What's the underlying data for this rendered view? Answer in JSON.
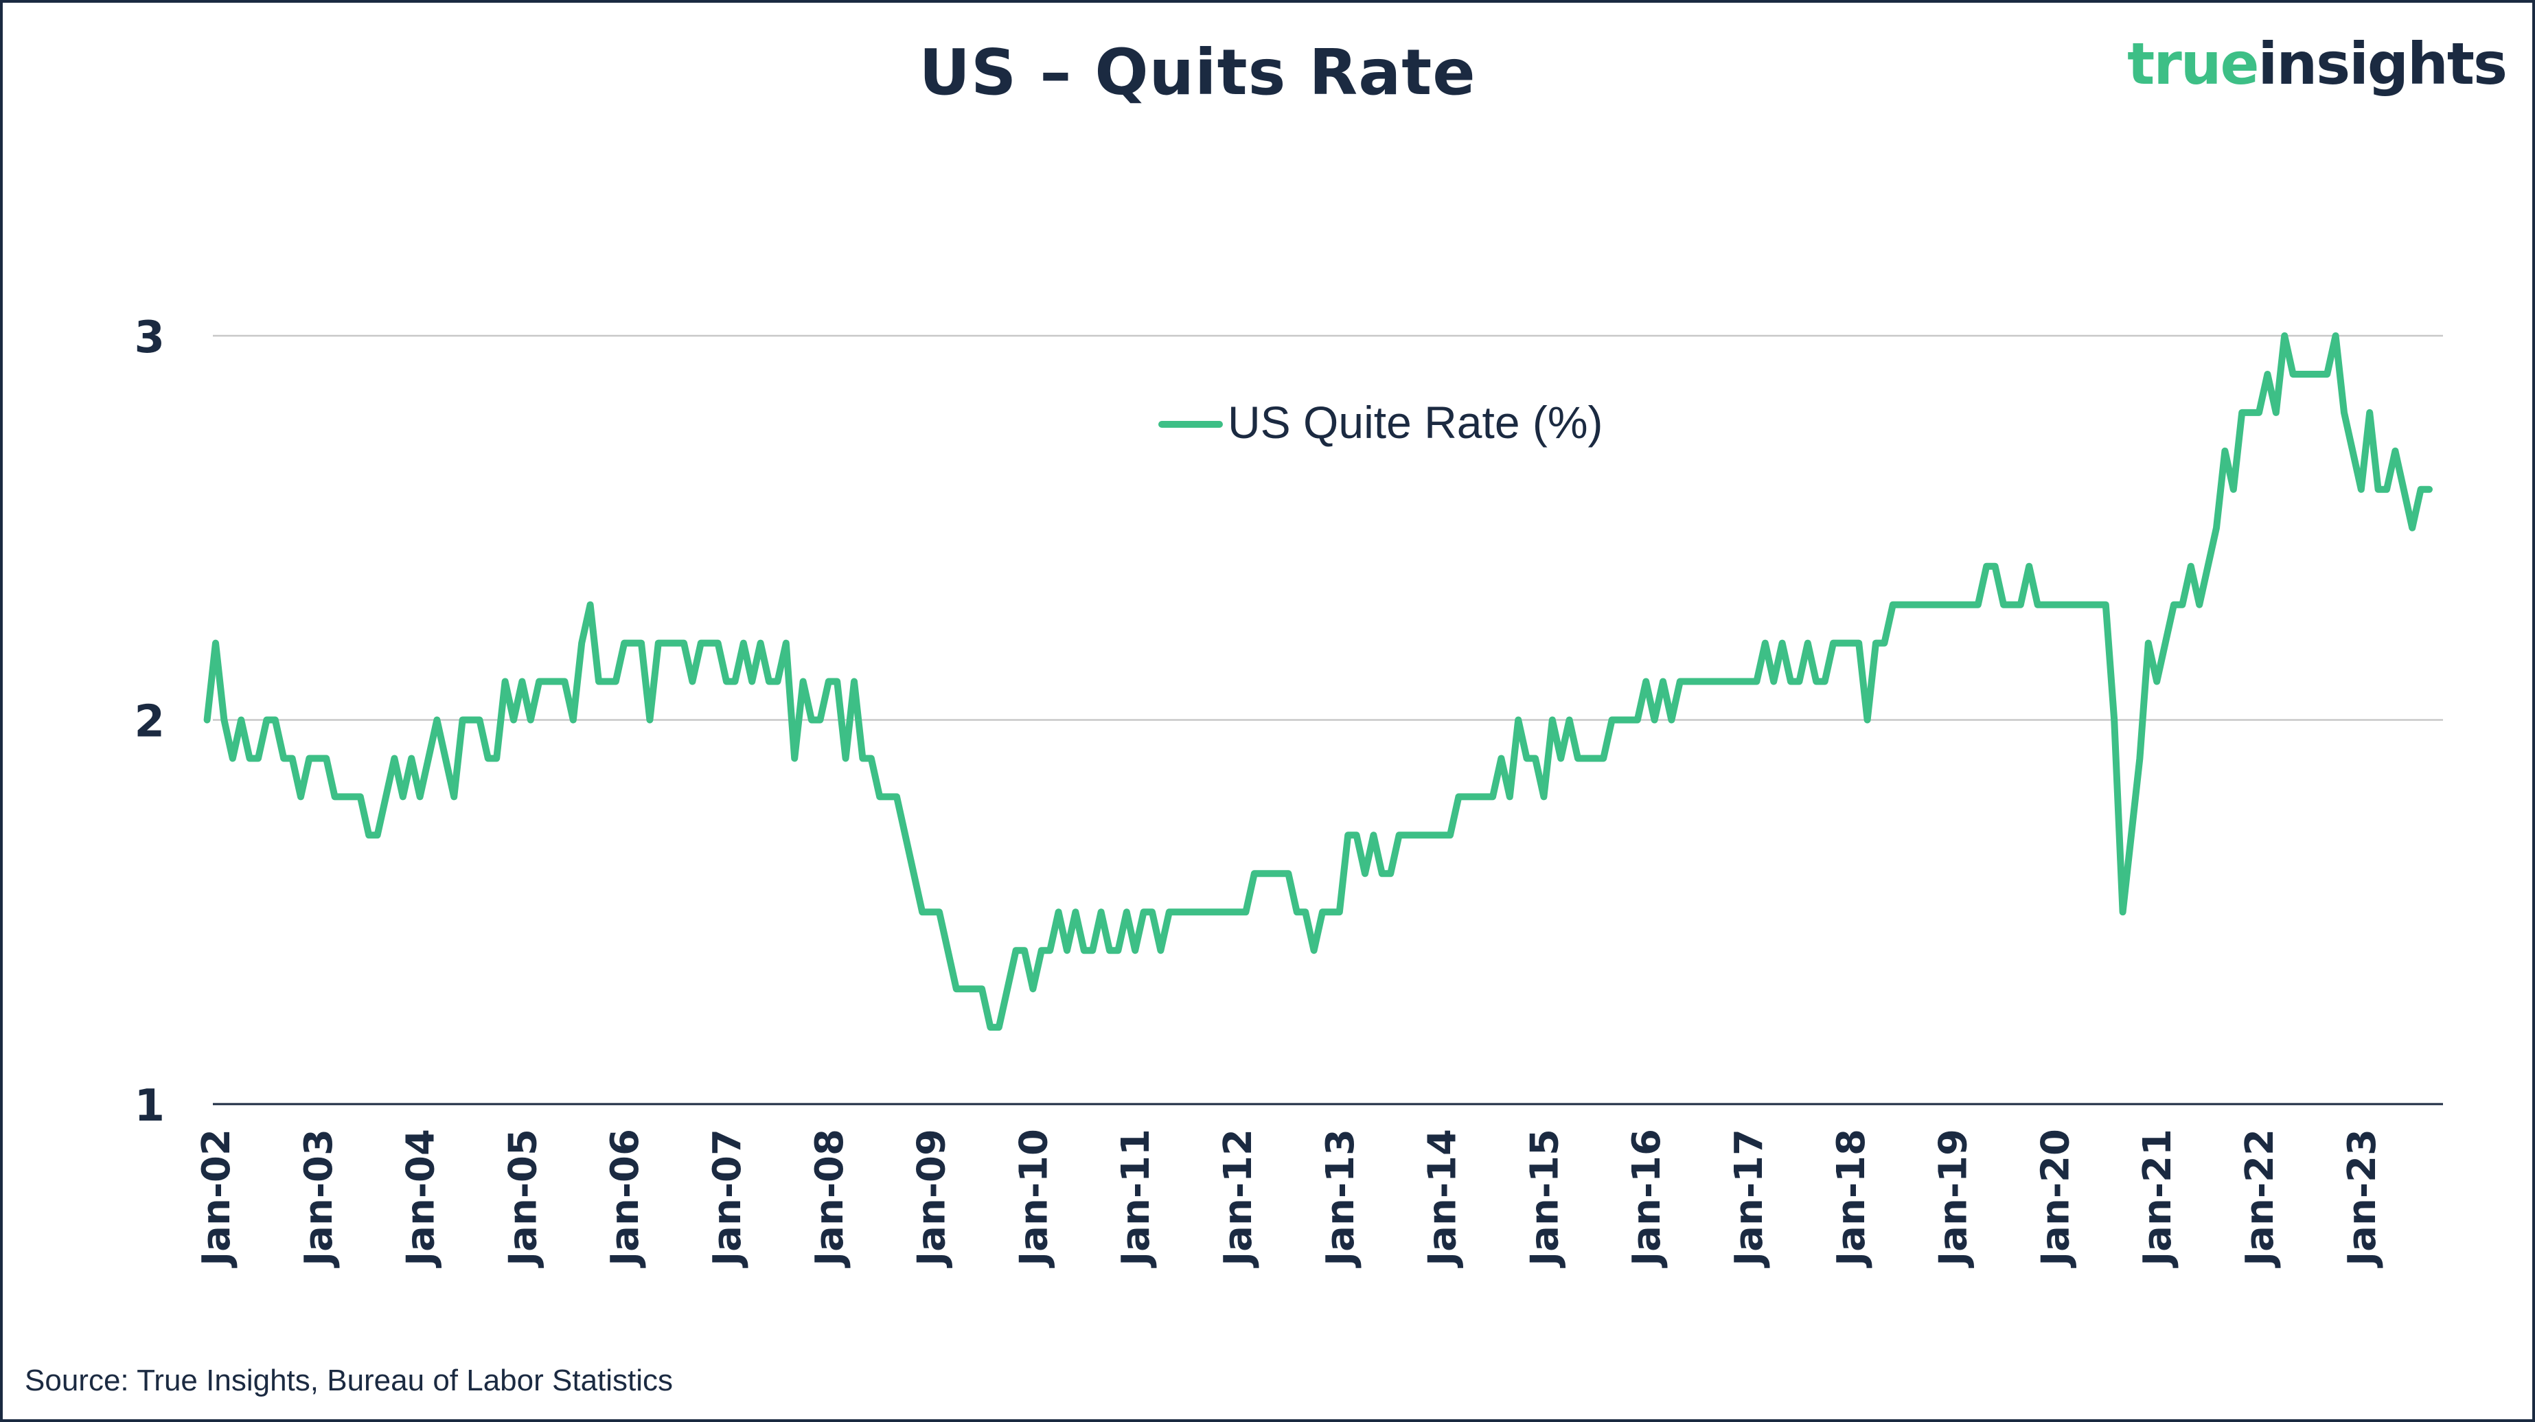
{
  "title": "US – Quits Rate",
  "logo": {
    "word1": "true",
    "word2": "insights",
    "color1": "#3dbf86",
    "color2": "#1b2a41"
  },
  "source": "Source: True Insights, Bureau of Labor Statistics",
  "chart_data": {
    "type": "line",
    "title": "US – Quits Rate",
    "xlabel": "",
    "ylabel": "",
    "ylim": [
      1,
      3
    ],
    "yticks": [
      "1",
      "2",
      "3"
    ],
    "grid": "horizontal",
    "legend_placement": "top-center",
    "x_tick_labels": [
      "Jan-02",
      "Jan-03",
      "Jan-04",
      "Jan-05",
      "Jan-06",
      "Jan-07",
      "Jan-08",
      "Jan-09",
      "Jan-10",
      "Jan-11",
      "Jan-12",
      "Jan-13",
      "Jan-14",
      "Jan-15",
      "Jan-16",
      "Jan-17",
      "Jan-18",
      "Jan-19",
      "Jan-20",
      "Jan-21",
      "Jan-22",
      "Jan-23"
    ],
    "x_start": "Dec-01",
    "x_frequency": "monthly",
    "series": [
      {
        "name": "US Quite Rate (%)",
        "color": "#3dbf86",
        "values": [
          2.0,
          2.2,
          2.0,
          1.9,
          2.0,
          1.9,
          1.9,
          2.0,
          2.0,
          1.9,
          1.9,
          1.8,
          1.9,
          1.9,
          1.9,
          1.8,
          1.8,
          1.8,
          1.8,
          1.7,
          1.7,
          1.8,
          1.9,
          1.8,
          1.9,
          1.8,
          1.9,
          2.0,
          1.9,
          1.8,
          2.0,
          2.0,
          2.0,
          1.9,
          1.9,
          2.1,
          2.0,
          2.1,
          2.0,
          2.1,
          2.1,
          2.1,
          2.1,
          2.0,
          2.2,
          2.3,
          2.1,
          2.1,
          2.1,
          2.2,
          2.2,
          2.2,
          2.0,
          2.2,
          2.2,
          2.2,
          2.2,
          2.1,
          2.2,
          2.2,
          2.2,
          2.1,
          2.1,
          2.2,
          2.1,
          2.2,
          2.1,
          2.1,
          2.2,
          1.9,
          2.1,
          2.0,
          2.0,
          2.1,
          2.1,
          1.9,
          2.1,
          1.9,
          1.9,
          1.8,
          1.8,
          1.8,
          1.7,
          1.6,
          1.5,
          1.5,
          1.5,
          1.4,
          1.3,
          1.3,
          1.3,
          1.3,
          1.2,
          1.2,
          1.3,
          1.4,
          1.4,
          1.3,
          1.4,
          1.4,
          1.5,
          1.4,
          1.5,
          1.4,
          1.4,
          1.5,
          1.4,
          1.4,
          1.5,
          1.4,
          1.5,
          1.5,
          1.4,
          1.5,
          1.5,
          1.5,
          1.5,
          1.5,
          1.5,
          1.5,
          1.5,
          1.5,
          1.5,
          1.6,
          1.6,
          1.6,
          1.6,
          1.6,
          1.5,
          1.5,
          1.4,
          1.5,
          1.5,
          1.5,
          1.7,
          1.7,
          1.6,
          1.7,
          1.6,
          1.6,
          1.7,
          1.7,
          1.7,
          1.7,
          1.7,
          1.7,
          1.7,
          1.8,
          1.8,
          1.8,
          1.8,
          1.8,
          1.9,
          1.8,
          2.0,
          1.9,
          1.9,
          1.8,
          2.0,
          1.9,
          2.0,
          1.9,
          1.9,
          1.9,
          1.9,
          2.0,
          2.0,
          2.0,
          2.0,
          2.1,
          2.0,
          2.1,
          2.0,
          2.1,
          2.1,
          2.1,
          2.1,
          2.1,
          2.1,
          2.1,
          2.1,
          2.1,
          2.1,
          2.2,
          2.1,
          2.2,
          2.1,
          2.1,
          2.2,
          2.1,
          2.1,
          2.2,
          2.2,
          2.2,
          2.2,
          2.0,
          2.2,
          2.2,
          2.3,
          2.3,
          2.3,
          2.3,
          2.3,
          2.3,
          2.3,
          2.3,
          2.3,
          2.3,
          2.3,
          2.4,
          2.4,
          2.3,
          2.3,
          2.3,
          2.4,
          2.3,
          2.3,
          2.3,
          2.3,
          2.3,
          2.3,
          2.3,
          2.3,
          2.3,
          2.0,
          1.5,
          1.7,
          1.9,
          2.2,
          2.1,
          2.2,
          2.3,
          2.3,
          2.4,
          2.3,
          2.4,
          2.5,
          2.7,
          2.6,
          2.8,
          2.8,
          2.8,
          2.9,
          2.8,
          3.0,
          2.9,
          2.9,
          2.9,
          2.9,
          2.9,
          3.0,
          2.8,
          2.7,
          2.6,
          2.8,
          2.6,
          2.6,
          2.7,
          2.6,
          2.5,
          2.6,
          2.6
        ]
      }
    ]
  }
}
